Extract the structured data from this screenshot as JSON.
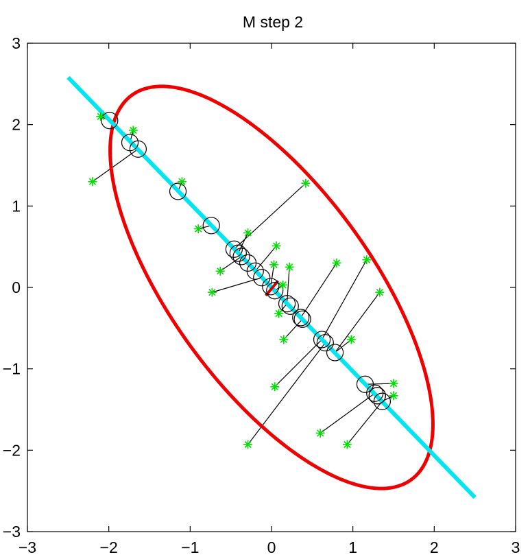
{
  "chart_data": {
    "type": "scatter",
    "title": "M step 2",
    "xlabel": "",
    "ylabel": "",
    "xlim": [
      -3,
      3
    ],
    "ylim": [
      -3,
      3
    ],
    "xticks": [
      -3,
      -2,
      -1,
      0,
      1,
      2,
      3
    ],
    "yticks": [
      -3,
      -2,
      -1,
      0,
      1,
      2,
      3
    ],
    "xtick_labels": [
      "−3",
      "−2",
      "−1",
      "0",
      "1",
      "2",
      "3"
    ],
    "ytick_labels": [
      "−3",
      "−2",
      "−1",
      "0",
      "1",
      "2",
      "3"
    ],
    "grid": false,
    "colors": {
      "data_points": "#00dd00",
      "projections": "#000000",
      "principal_line": "#00e5ee",
      "ellipse": "#ee0000",
      "mean_marker": "#cc0000"
    },
    "principal_line": {
      "name": "principal axis",
      "x": [
        -2.5,
        2.5
      ],
      "y": [
        2.58,
        -2.58
      ]
    },
    "ellipse": {
      "name": "covariance ellipse",
      "center": [
        0,
        0
      ],
      "angle_deg": -54,
      "semi_major": 2.92,
      "semi_minor": 1.23
    },
    "mean_marker": {
      "name": "mean",
      "x": [
        -0.07,
        0.08
      ],
      "y": [
        -0.1,
        0.08
      ]
    },
    "data_points": [
      {
        "x": -2.1,
        "y": 2.1
      },
      {
        "x": -1.7,
        "y": 1.93
      },
      {
        "x": -2.2,
        "y": 1.3
      },
      {
        "x": -1.1,
        "y": 1.3
      },
      {
        "x": -0.9,
        "y": 0.72
      },
      {
        "x": 0.42,
        "y": 1.28
      },
      {
        "x": -0.29,
        "y": 0.67
      },
      {
        "x": 0.06,
        "y": 0.51
      },
      {
        "x": -0.63,
        "y": 0.2
      },
      {
        "x": 0.03,
        "y": 0.28
      },
      {
        "x": 0.22,
        "y": 0.25
      },
      {
        "x": 0.8,
        "y": 0.3
      },
      {
        "x": 1.17,
        "y": 0.34
      },
      {
        "x": -0.73,
        "y": -0.06
      },
      {
        "x": 0.14,
        "y": 0.03
      },
      {
        "x": 1.33,
        "y": -0.06
      },
      {
        "x": 0.09,
        "y": -0.32
      },
      {
        "x": 0.15,
        "y": -0.64
      },
      {
        "x": 0.98,
        "y": -0.64
      },
      {
        "x": 0.04,
        "y": -1.22
      },
      {
        "x": 1.5,
        "y": -1.18
      },
      {
        "x": 1.5,
        "y": -1.33
      },
      {
        "x": 0.6,
        "y": -1.79
      },
      {
        "x": -0.29,
        "y": -1.93
      },
      {
        "x": 0.93,
        "y": -1.93
      }
    ],
    "projections": [
      {
        "x": -1.99,
        "y": 2.05
      },
      {
        "x": -1.74,
        "y": 1.78
      },
      {
        "x": -1.64,
        "y": 1.7
      },
      {
        "x": -1.15,
        "y": 1.18
      },
      {
        "x": -0.74,
        "y": 0.76
      },
      {
        "x": -0.46,
        "y": 0.47
      },
      {
        "x": -0.41,
        "y": 0.42
      },
      {
        "x": -0.37,
        "y": 0.38
      },
      {
        "x": -0.29,
        "y": 0.3
      },
      {
        "x": -0.2,
        "y": 0.2
      },
      {
        "x": -0.12,
        "y": 0.12
      },
      {
        "x": -0.01,
        "y": 0.01
      },
      {
        "x": 0.04,
        "y": -0.04
      },
      {
        "x": 0.19,
        "y": -0.2
      },
      {
        "x": 0.23,
        "y": -0.23
      },
      {
        "x": 0.36,
        "y": -0.37
      },
      {
        "x": 0.38,
        "y": -0.39
      },
      {
        "x": 0.62,
        "y": -0.64
      },
      {
        "x": 0.66,
        "y": -0.68
      },
      {
        "x": 0.78,
        "y": -0.8
      },
      {
        "x": 1.15,
        "y": -1.19
      },
      {
        "x": 1.27,
        "y": -1.3
      },
      {
        "x": 1.36,
        "y": -1.4
      },
      {
        "x": 1.3,
        "y": -1.33
      },
      {
        "x": 1.3,
        "y": -1.33
      }
    ],
    "links": [
      {
        "from": 0,
        "to": 0
      },
      {
        "from": 1,
        "to": 1
      },
      {
        "from": 2,
        "to": 2
      },
      {
        "from": 3,
        "to": 3
      },
      {
        "from": 4,
        "to": 4
      },
      {
        "from": 5,
        "to": 5
      },
      {
        "from": 6,
        "to": 6
      },
      {
        "from": 7,
        "to": 9
      },
      {
        "from": 8,
        "to": 7
      },
      {
        "from": 9,
        "to": 11
      },
      {
        "from": 10,
        "to": 13
      },
      {
        "from": 11,
        "to": 15
      },
      {
        "from": 12,
        "to": 17
      },
      {
        "from": 13,
        "to": 10
      },
      {
        "from": 14,
        "to": 12
      },
      {
        "from": 15,
        "to": 19
      },
      {
        "from": 16,
        "to": 13
      },
      {
        "from": 17,
        "to": 16
      },
      {
        "from": 18,
        "to": 19
      },
      {
        "from": 19,
        "to": 17
      },
      {
        "from": 20,
        "to": 20
      },
      {
        "from": 21,
        "to": 22
      },
      {
        "from": 22,
        "to": 21
      },
      {
        "from": 23,
        "to": 18
      },
      {
        "from": 24,
        "to": 22
      }
    ]
  }
}
